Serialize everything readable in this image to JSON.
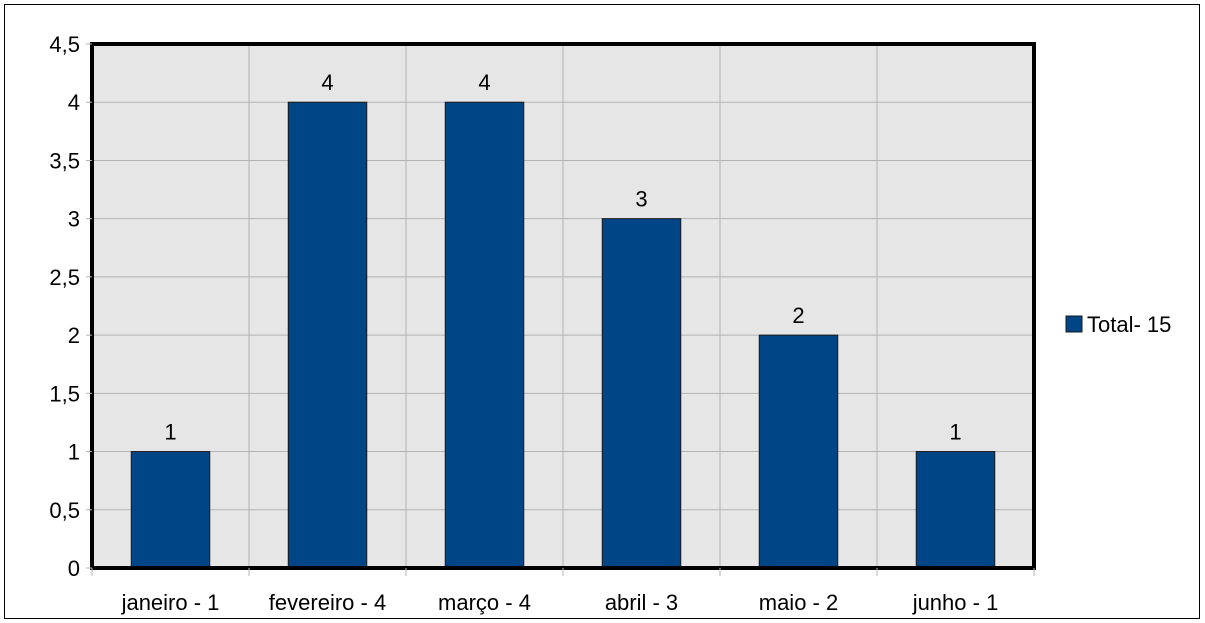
{
  "chart_data": {
    "type": "bar",
    "categories": [
      "janeiro - 1",
      "fevereiro - 4",
      "março - 4",
      "abril - 3",
      "maio - 2",
      "junho - 1"
    ],
    "series": [
      {
        "name": "Total- 15",
        "values": [
          1,
          4,
          4,
          3,
          2,
          1
        ],
        "color": "#004586"
      }
    ],
    "ylim": [
      0,
      4.5
    ],
    "yticks": [
      "0",
      "0,5",
      "1",
      "1,5",
      "2",
      "2,5",
      "3",
      "3,5",
      "4",
      "4,5"
    ],
    "data_labels": [
      "1",
      "4",
      "4",
      "3",
      "2",
      "1"
    ],
    "grid": true,
    "legend_position": "right",
    "plot_background": "#e6e6e6",
    "title": "",
    "xlabel": "",
    "ylabel": ""
  }
}
